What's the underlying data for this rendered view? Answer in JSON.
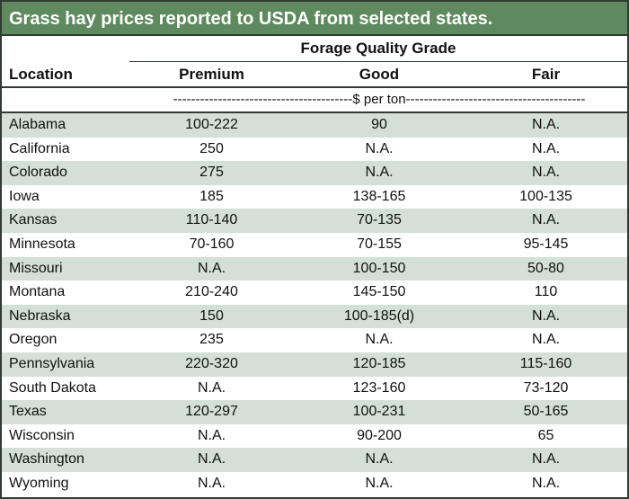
{
  "title": "Grass hay prices reported to USDA from selected states.",
  "header": {
    "location_label": "Location",
    "group_label": "Forage Quality Grade",
    "columns": [
      "Premium",
      "Good",
      "Fair"
    ]
  },
  "units": "----------------------------------------$ per ton----------------------------------------",
  "rows": [
    {
      "location": "Alabama",
      "premium": "100-222",
      "good": "90",
      "fair": "N.A."
    },
    {
      "location": "California",
      "premium": "250",
      "good": "N.A.",
      "fair": "N.A."
    },
    {
      "location": "Colorado",
      "premium": "275",
      "good": "N.A.",
      "fair": "N.A."
    },
    {
      "location": "Iowa",
      "premium": "185",
      "good": "138-165",
      "fair": "100-135"
    },
    {
      "location": "Kansas",
      "premium": "110-140",
      "good": "70-135",
      "fair": "N.A."
    },
    {
      "location": "Minnesota",
      "premium": "70-160",
      "good": "70-155",
      "fair": "95-145"
    },
    {
      "location": "Missouri",
      "premium": "N.A.",
      "good": "100-150",
      "fair": "50-80"
    },
    {
      "location": "Montana",
      "premium": "210-240",
      "good": "145-150",
      "fair": "110"
    },
    {
      "location": "Nebraska",
      "premium": "150",
      "good": "100-185(d)",
      "fair": "N.A."
    },
    {
      "location": "Oregon",
      "premium": "235",
      "good": "N.A.",
      "fair": "N.A."
    },
    {
      "location": "Pennsylvania",
      "premium": "220-320",
      "good": "120-185",
      "fair": "115-160"
    },
    {
      "location": "South Dakota",
      "premium": "N.A.",
      "good": "123-160",
      "fair": "73-120"
    },
    {
      "location": "Texas",
      "premium": "120-297",
      "good": "100-231",
      "fair": "50-165"
    },
    {
      "location": "Wisconsin",
      "premium": "N.A.",
      "good": "90-200",
      "fair": "65"
    },
    {
      "location": "Washington",
      "premium": "N.A.",
      "good": "N.A.",
      "fair": "N.A."
    },
    {
      "location": "Wyoming",
      "premium": "N.A.",
      "good": "N.A.",
      "fair": "N.A."
    }
  ]
}
